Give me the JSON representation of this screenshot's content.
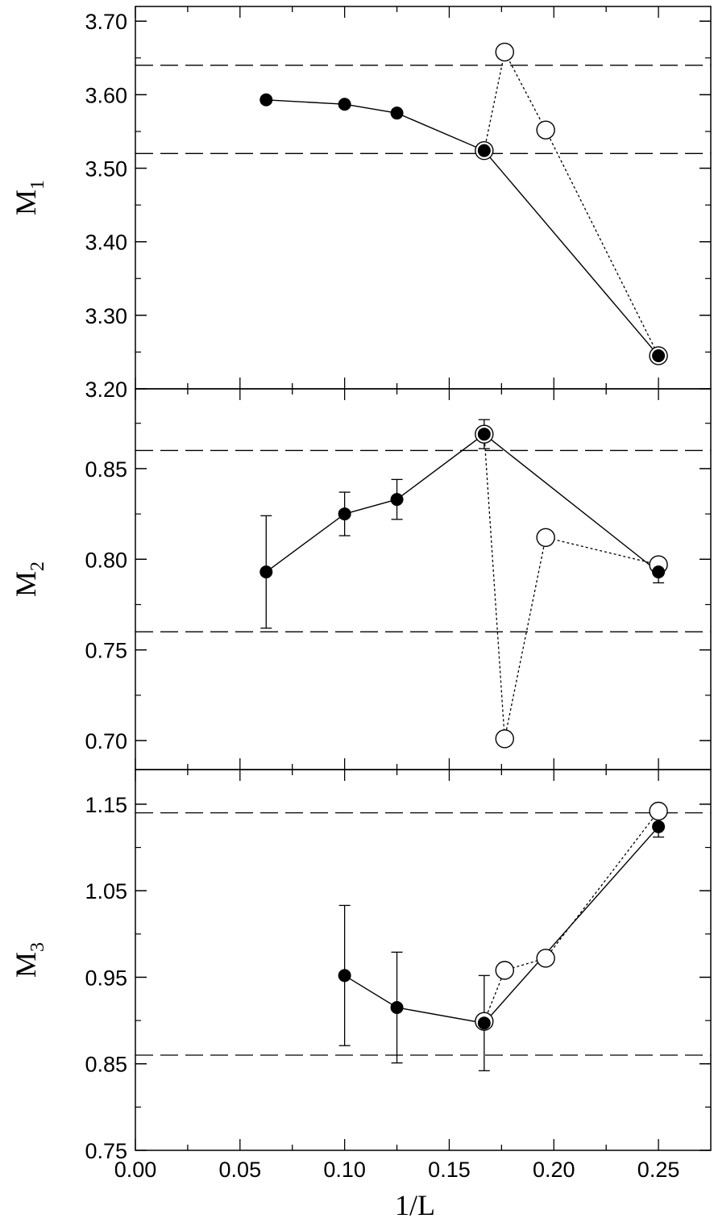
{
  "chart_data": [
    {
      "type": "line",
      "ylabel": {
        "base": "M",
        "sub": "1"
      },
      "ylim": [
        3.2,
        3.72
      ],
      "yticks": [
        3.2,
        3.3,
        3.4,
        3.5,
        3.6,
        3.7
      ],
      "ytick_labels": [
        "3.20",
        "3.30",
        "3.40",
        "3.50",
        "3.60",
        "3.70"
      ],
      "reference_lines": [
        3.64,
        3.52
      ],
      "series": [
        {
          "style": "filled-solid",
          "x": [
            0.0625,
            0.1,
            0.125,
            0.1667,
            0.25
          ],
          "y": [
            3.593,
            3.587,
            3.575,
            3.524,
            3.245
          ]
        },
        {
          "style": "open-dotted",
          "x": [
            0.1667,
            0.1765,
            0.1961,
            0.25
          ],
          "y": [
            3.524,
            3.658,
            3.552,
            3.245
          ]
        }
      ]
    },
    {
      "type": "line",
      "ylabel": {
        "base": "M",
        "sub": "2"
      },
      "ylim": [
        0.684,
        0.894
      ],
      "yticks": [
        0.7,
        0.75,
        0.8,
        0.85
      ],
      "ytick_labels": [
        "0.70",
        "0.75",
        "0.80",
        "0.85"
      ],
      "reference_lines": [
        0.86,
        0.76
      ],
      "series": [
        {
          "style": "filled-solid",
          "x": [
            0.0625,
            0.1,
            0.125,
            0.1667,
            0.25
          ],
          "y": [
            0.793,
            0.825,
            0.833,
            0.869,
            0.793
          ],
          "err": [
            0.031,
            0.012,
            0.011,
            0.008,
            0.006
          ]
        },
        {
          "style": "open-dotted",
          "x": [
            0.1667,
            0.1765,
            0.1961,
            0.25
          ],
          "y": [
            0.869,
            0.701,
            0.812,
            0.797
          ]
        }
      ]
    },
    {
      "type": "line",
      "ylabel": {
        "base": "M",
        "sub": "3"
      },
      "xlabel": "1/L",
      "xlim": [
        0.0,
        0.275
      ],
      "xticks": [
        0.0,
        0.05,
        0.1,
        0.15,
        0.2,
        0.25
      ],
      "xtick_labels": [
        "0.00",
        "0.05",
        "0.10",
        "0.15",
        "0.20",
        "0.25"
      ],
      "ylim": [
        0.75,
        1.19
      ],
      "yticks": [
        0.75,
        0.85,
        0.95,
        1.05,
        1.15
      ],
      "ytick_labels": [
        "0.75",
        "0.85",
        "0.95",
        "1.05",
        "1.15"
      ],
      "reference_lines": [
        1.14,
        0.86
      ],
      "series": [
        {
          "style": "filled-solid",
          "x": [
            0.1,
            0.125,
            0.1667,
            0.25
          ],
          "y": [
            0.952,
            0.915,
            0.897,
            1.124
          ],
          "err": [
            0.081,
            0.064,
            0.055,
            0.012
          ]
        },
        {
          "style": "open-dotted",
          "x": [
            0.1667,
            0.1765,
            0.1961,
            0.25
          ],
          "y": [
            0.899,
            0.958,
            0.972,
            1.142
          ]
        }
      ]
    }
  ]
}
